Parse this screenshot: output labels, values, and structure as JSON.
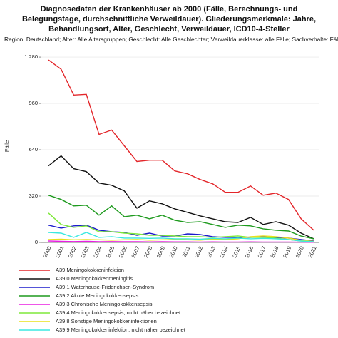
{
  "chart_data": {
    "type": "line",
    "title": "Diagnosedaten der Krankenhäuser ab 2000 (Fälle, Berechnungs- und Belegungstage, durchschnittliche Verweildauer). Gliederungsmerkmale: Jahre, Behandlungsort, Alter, Geschlecht, Verweildauer, ICD10-4-Steller",
    "subtitle": "Region: Deutschland; Alter: Alle Altersgruppen; Geschlecht: Alle Geschlechter; Verweildauerklasse: alle Fälle; Sachverhalte: Fälle",
    "y_label": "Fälle",
    "categories": [
      "2000",
      "2001",
      "2002",
      "2003",
      "2004",
      "2005",
      "2006",
      "2007",
      "2008",
      "2009",
      "2010",
      "2011",
      "2012",
      "2013",
      "2014",
      "2015",
      "2016",
      "2017",
      "2018",
      "2019",
      "2020",
      "2021"
    ],
    "ylim": [
      0,
      1300
    ],
    "yticks": [
      0,
      320,
      640,
      960,
      {
        "value": 1280,
        "label": "1.280"
      }
    ],
    "grid": true,
    "series": [
      {
        "name": "A39 Meningokokkeninfektion",
        "color": "#e3262a",
        "values": [
          1260,
          1196,
          1018,
          1023,
          746,
          776,
          667,
          559,
          568,
          568,
          494,
          474,
          435,
          405,
          346,
          346,
          390,
          326,
          341,
          297,
          163,
          84
        ]
      },
      {
        "name": "A39.0 Meningokokkenmeningitis",
        "color": "#111111",
        "values": [
          529,
          598,
          509,
          489,
          410,
          395,
          356,
          237,
          287,
          267,
          232,
          208,
          183,
          163,
          143,
          138,
          173,
          124,
          143,
          119,
          64,
          25
        ]
      },
      {
        "name": "A39.1 Waterhouse-Friderichsen-Syndrom",
        "color": "#1c1ccc",
        "values": [
          119,
          99,
          114,
          119,
          84,
          74,
          69,
          49,
          64,
          44,
          44,
          59,
          54,
          40,
          35,
          35,
          35,
          40,
          35,
          30,
          20,
          10
        ]
      },
      {
        "name": "A39.2 Akute Meningokokkensepsis",
        "color": "#1e9a1e",
        "values": [
          326,
          297,
          252,
          257,
          188,
          252,
          178,
          188,
          163,
          188,
          153,
          138,
          143,
          124,
          104,
          119,
          114,
          94,
          84,
          79,
          44,
          25
        ]
      },
      {
        "name": "A39.3 Chronische Meningokokkensepsis",
        "color": "#e81ee0",
        "values": [
          10,
          8,
          6,
          8,
          5,
          6,
          5,
          5,
          4,
          5,
          4,
          4,
          3,
          4,
          3,
          3,
          4,
          3,
          3,
          3,
          2,
          1
        ]
      },
      {
        "name": "A39.4 Meningokokkensepsis, nicht näher bezeichnet",
        "color": "#7ee83a",
        "values": [
          203,
          124,
          104,
          114,
          74,
          74,
          64,
          59,
          49,
          49,
          45,
          40,
          40,
          35,
          40,
          45,
          35,
          35,
          30,
          20,
          10,
          5
        ]
      },
      {
        "name": "A39.8 Sonstige Meningokokkeninfektionen",
        "color": "#e8e01a",
        "values": [
          20,
          22,
          18,
          20,
          18,
          16,
          18,
          20,
          16,
          18,
          20,
          18,
          16,
          22,
          20,
          25,
          40,
          45,
          40,
          30,
          15,
          8
        ]
      },
      {
        "name": "A39.9 Meningokokkeninfektion, nicht näher bezeichnet",
        "color": "#3ae8e0",
        "values": [
          69,
          64,
          35,
          69,
          35,
          40,
          30,
          30,
          28,
          30,
          25,
          25,
          22,
          28,
          25,
          30,
          25,
          28,
          25,
          20,
          10,
          5
        ]
      }
    ]
  }
}
